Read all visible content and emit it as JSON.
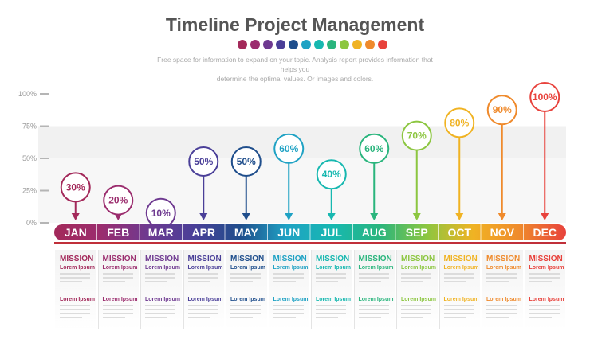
{
  "header": {
    "title": "Timeline Project Management",
    "subtitle_line1": "Free space for information to expand on your topic. Analysis report provides information that helps you",
    "subtitle_line2": "determine the optimal values. Or images and colors."
  },
  "yaxis": {
    "ticks": [
      "100%",
      "75%",
      "50%",
      "25%",
      "0%"
    ]
  },
  "months": [
    {
      "month": "JAN",
      "percent": "30%",
      "value": 30,
      "color": "#a3295a",
      "mission": "MISSION",
      "lorem1": "Lorem Ipsum",
      "lorem2": "Lorem Ipsum"
    },
    {
      "month": "FEB",
      "percent": "20%",
      "value": 20,
      "color": "#9b2d6e",
      "mission": "MISSION",
      "lorem1": "Lorem Ipsum",
      "lorem2": "Lorem Ipsum"
    },
    {
      "month": "MAR",
      "percent": "10%",
      "value": 10,
      "color": "#6e3990",
      "mission": "MISSION",
      "lorem1": "Lorem Ipsum",
      "lorem2": "Lorem Ipsum"
    },
    {
      "month": "APR",
      "percent": "50%",
      "value": 50,
      "color": "#4a3f98",
      "mission": "MISSION",
      "lorem1": "Lorem Ipsum",
      "lorem2": "Lorem Ipsum"
    },
    {
      "month": "MAY",
      "percent": "50%",
      "value": 50,
      "color": "#1f4e8c",
      "mission": "MISSION",
      "lorem1": "Lorem Ipsum",
      "lorem2": "Lorem Ipsum"
    },
    {
      "month": "JUN",
      "percent": "60%",
      "value": 60,
      "color": "#1fa2c4",
      "mission": "MISSION",
      "lorem1": "Lorem Ipsum",
      "lorem2": "Lorem Ipsum"
    },
    {
      "month": "JUL",
      "percent": "40%",
      "value": 40,
      "color": "#17b8b0",
      "mission": "MISSION",
      "lorem1": "Lorem Ipsum",
      "lorem2": "Lorem Ipsum"
    },
    {
      "month": "AUG",
      "percent": "60%",
      "value": 60,
      "color": "#2ab57d",
      "mission": "MISSION",
      "lorem1": "Lorem Ipsum",
      "lorem2": "Lorem Ipsum"
    },
    {
      "month": "SEP",
      "percent": "70%",
      "value": 70,
      "color": "#8cc640",
      "mission": "MISSION",
      "lorem1": "Lorem Ipsum",
      "lorem2": "Lorem Ipsum"
    },
    {
      "month": "OCT",
      "percent": "80%",
      "value": 80,
      "color": "#f0b323",
      "mission": "MISSION",
      "lorem1": "Lorem Ipsum",
      "lorem2": "Lorem Ipsum"
    },
    {
      "month": "NOV",
      "percent": "90%",
      "value": 90,
      "color": "#ef8a2c",
      "mission": "MISSION",
      "lorem1": "Lorem Ipsum",
      "lorem2": "Lorem Ipsum"
    },
    {
      "month": "DEC",
      "percent": "100%",
      "value": 100,
      "color": "#e8423c",
      "mission": "MISSION",
      "lorem1": "Lorem Ipsum",
      "lorem2": "Lorem Ipsum"
    }
  ]
}
